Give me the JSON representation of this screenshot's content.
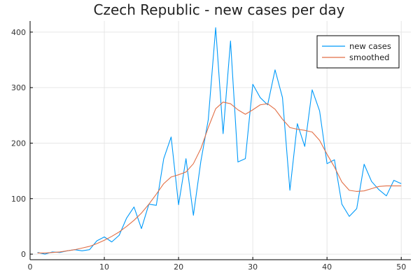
{
  "chart_data": {
    "type": "line",
    "title": "Czech Republic - new cases per day",
    "xlabel": "",
    "ylabel": "",
    "xlim": [
      0,
      51.3
    ],
    "ylim": [
      -10,
      420
    ],
    "xticks": [
      0,
      10,
      20,
      30,
      40,
      50
    ],
    "yticks": [
      0,
      100,
      200,
      300,
      400
    ],
    "grid": true,
    "legend_position": "top-right",
    "x": [
      1,
      2,
      3,
      4,
      5,
      6,
      7,
      8,
      9,
      10,
      11,
      12,
      13,
      14,
      15,
      16,
      17,
      18,
      19,
      20,
      21,
      22,
      23,
      24,
      25,
      26,
      27,
      28,
      29,
      30,
      31,
      32,
      33,
      34,
      35,
      36,
      37,
      38,
      39,
      40,
      41,
      42,
      43,
      44,
      45,
      46,
      47,
      48,
      49,
      50
    ],
    "series": [
      {
        "name": "new cases",
        "color": "#009AFA",
        "values": [
          3,
          0,
          4,
          3,
          6,
          8,
          6,
          8,
          24,
          31,
          22,
          34,
          65,
          85,
          46,
          90,
          88,
          172,
          211,
          89,
          172,
          70,
          167,
          242,
          408,
          217,
          384,
          166,
          172,
          306,
          282,
          269,
          332,
          282,
          115,
          235,
          194,
          296,
          258,
          163,
          170,
          90,
          68,
          82,
          162,
          131,
          116,
          105,
          133,
          127
        ]
      },
      {
        "name": "smoothed",
        "color": "#E26F46",
        "values": [
          2,
          2,
          3,
          4,
          6,
          8,
          11,
          14,
          19,
          25,
          32,
          40,
          50,
          61,
          74,
          90,
          108,
          127,
          139,
          143,
          148,
          163,
          190,
          228,
          262,
          274,
          271,
          260,
          252,
          260,
          269,
          271,
          261,
          243,
          228,
          225,
          223,
          220,
          205,
          180,
          157,
          130,
          115,
          113,
          114,
          118,
          122,
          123,
          123,
          123
        ]
      }
    ]
  }
}
